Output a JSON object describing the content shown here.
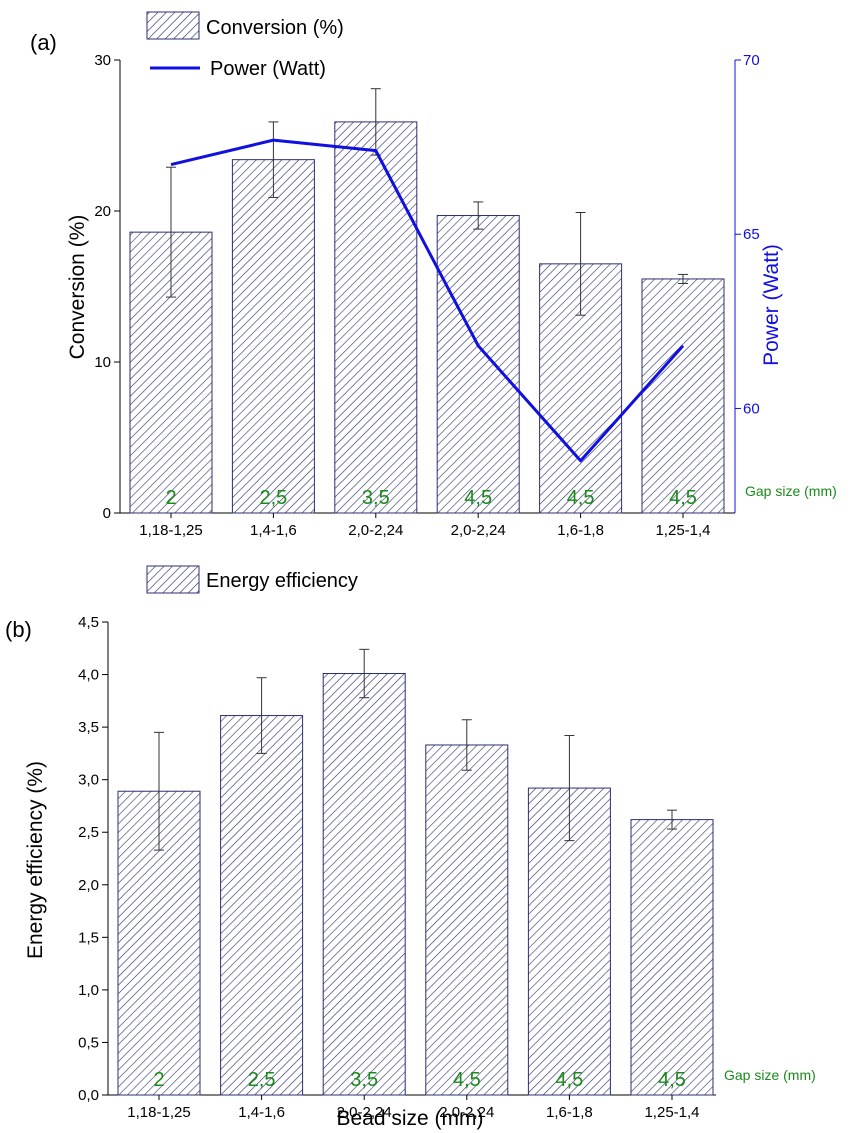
{
  "colors": {
    "bar_hatch": "#2b2f6e",
    "power_line": "#1010e0",
    "gap_label": "#1a8a1a",
    "axis": "#000000"
  },
  "chart_data": [
    {
      "panel_label": "(a)",
      "type": "bar",
      "categories": [
        "1,18-1,25",
        "1,4-1,6",
        "2,0-2,24",
        "2,0-2,24",
        "1,6-1,8",
        "1,25-1,4"
      ],
      "series": [
        {
          "name": "Conversion (%)",
          "type": "bar",
          "axis": "left",
          "values": [
            18.6,
            23.4,
            25.9,
            19.7,
            16.5,
            15.5
          ],
          "error": [
            4.3,
            2.5,
            2.2,
            0.9,
            3.4,
            0.3
          ]
        },
        {
          "name": "Power (Watt)",
          "type": "line",
          "axis": "right",
          "values": [
            67.0,
            67.7,
            67.4,
            61.8,
            58.5,
            61.8
          ]
        }
      ],
      "bar_annotations": [
        "2",
        "2,5",
        "3,5",
        "4,5",
        "4,5",
        "4,5"
      ],
      "annotation_label": "Gap size (mm)",
      "ylabel": "Conversion (%)",
      "ylim": [
        0,
        30
      ],
      "yticks": [
        "0",
        "10",
        "20",
        "30"
      ],
      "y2label": "Power (Watt)",
      "y2lim": [
        57,
        70
      ],
      "y2ticks": [
        "60",
        "65",
        "70"
      ],
      "xlabel": "",
      "grid": false,
      "legend_position": "top"
    },
    {
      "panel_label": "(b)",
      "type": "bar",
      "categories": [
        "1,18-1,25",
        "1,4-1,6",
        "2,0-2,24",
        "2,0-2,24",
        "1,6-1,8",
        "1,25-1,4"
      ],
      "series": [
        {
          "name": "Energy efficiency",
          "type": "bar",
          "axis": "left",
          "values": [
            2.89,
            3.61,
            4.01,
            3.33,
            2.92,
            2.62
          ],
          "error": [
            0.56,
            0.36,
            0.23,
            0.24,
            0.5,
            0.09
          ]
        }
      ],
      "bar_annotations": [
        "2",
        "2,5",
        "3,5",
        "4,5",
        "4,5",
        "4,5"
      ],
      "annotation_label": "Gap size (mm)",
      "ylabel": "Energy efficiency (%)",
      "ylim": [
        0,
        4.5
      ],
      "yticks": [
        "0,0",
        "0,5",
        "1,0",
        "1,5",
        "2,0",
        "2,5",
        "3,0",
        "3,5",
        "4,0",
        "4,5"
      ],
      "xlabel": "Bead size (mm)",
      "grid": false,
      "legend_position": "top"
    }
  ]
}
